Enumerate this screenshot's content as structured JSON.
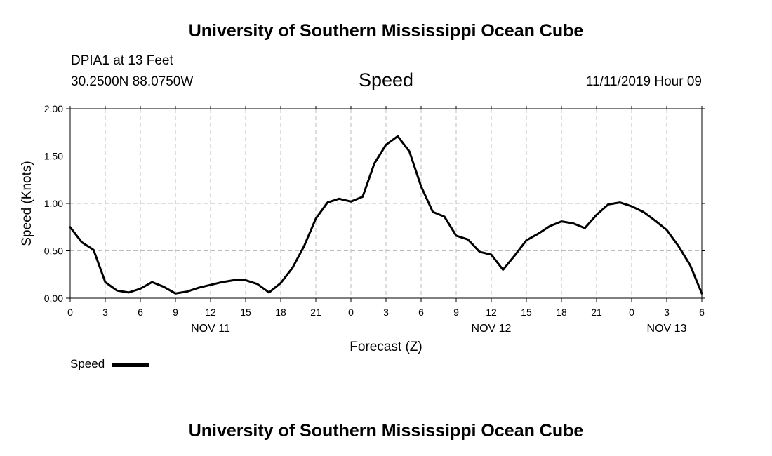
{
  "header": {
    "title": "University of Southern Mississippi Ocean Cube",
    "station": "DPIA1 at 13 Feet",
    "coords": "30.2500N 88.0750W",
    "timestamp": "11/11/2019 Hour 09"
  },
  "footer": {
    "title": "University of Southern Mississippi Ocean Cube"
  },
  "legend": {
    "label": "Speed"
  },
  "chart_data": {
    "type": "line",
    "title": "Speed",
    "xlabel": "Forecast (Z)",
    "ylabel": "Speed (Knots)",
    "xlim": [
      0,
      54
    ],
    "ylim": [
      0,
      2
    ],
    "grid": true,
    "legend_position": "bottom-left",
    "x_ticks": [
      0,
      3,
      6,
      9,
      12,
      15,
      18,
      21,
      24,
      27,
      30,
      33,
      36,
      39,
      42,
      45,
      48,
      51,
      54
    ],
    "x_tick_labels": [
      "0",
      "3",
      "6",
      "9",
      "12",
      "15",
      "18",
      "21",
      "0",
      "3",
      "6",
      "9",
      "12",
      "15",
      "18",
      "21",
      "0",
      "3",
      "6"
    ],
    "y_ticks": [
      0,
      0.5,
      1,
      1.5,
      2
    ],
    "y_tick_labels": [
      "0.00",
      "0.50",
      "1.00",
      "1.50",
      "2.00"
    ],
    "day_labels": [
      {
        "label": "NOV 11",
        "x": 12
      },
      {
        "label": "NOV 12",
        "x": 36
      },
      {
        "label": "NOV 13",
        "x": 51
      }
    ],
    "series": [
      {
        "name": "Speed",
        "color": "#000000",
        "x": [
          0,
          1,
          2,
          3,
          4,
          5,
          6,
          7,
          8,
          9,
          10,
          11,
          12,
          13,
          14,
          15,
          16,
          17,
          18,
          19,
          20,
          21,
          22,
          23,
          24,
          25,
          26,
          27,
          28,
          29,
          30,
          31,
          32,
          33,
          34,
          35,
          36,
          37,
          38,
          39,
          40,
          41,
          42,
          43,
          44,
          45,
          46,
          47,
          48,
          49,
          50,
          51,
          52,
          53,
          54
        ],
        "values": [
          0.75,
          0.59,
          0.51,
          0.17,
          0.08,
          0.06,
          0.1,
          0.17,
          0.12,
          0.05,
          0.07,
          0.11,
          0.14,
          0.17,
          0.19,
          0.19,
          0.15,
          0.06,
          0.16,
          0.32,
          0.55,
          0.84,
          1.01,
          1.05,
          1.02,
          1.07,
          1.42,
          1.62,
          1.71,
          1.55,
          1.18,
          0.91,
          0.86,
          0.66,
          0.62,
          0.49,
          0.46,
          0.3,
          0.45,
          0.61,
          0.68,
          0.76,
          0.81,
          0.79,
          0.74,
          0.88,
          0.99,
          1.01,
          0.97,
          0.91,
          0.82,
          0.72,
          0.55,
          0.35,
          0.05
        ]
      }
    ]
  }
}
